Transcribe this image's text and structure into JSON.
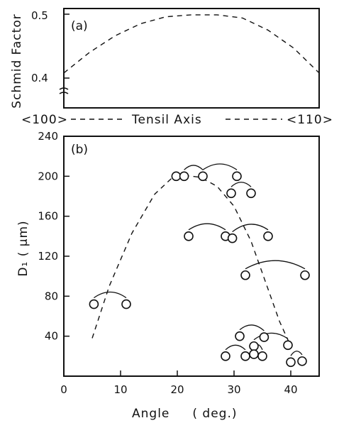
{
  "chart_data": [
    {
      "type": "line",
      "panel_label": "(a)",
      "ylabel": "Schmid Factor",
      "ylim": [
        0.38,
        0.5
      ],
      "y_ticks": [
        "0.5",
        "0.4"
      ],
      "tick_values": [
        0.5,
        0.4
      ],
      "x_start_label": "<100>",
      "x_middle_label": "Tensil Axis",
      "x_end_label": "<110>",
      "curve": {
        "x": [
          0,
          0.1,
          0.2,
          0.3,
          0.4,
          0.5,
          0.6,
          0.7,
          0.8,
          0.9,
          1.0
        ],
        "y": [
          0.408,
          0.44,
          0.466,
          0.485,
          0.496,
          0.499,
          0.499,
          0.494,
          0.475,
          0.447,
          0.408
        ]
      }
    },
    {
      "type": "scatter",
      "panel_label": "(b)",
      "ylabel": "D₁  ( μm)",
      "xlabel": "Angle     ( deg.)",
      "xlim": [
        0,
        45
      ],
      "ylim": [
        0,
        240
      ],
      "x_ticks": [
        0,
        10,
        20,
        30,
        40
      ],
      "y_ticks": [
        40,
        80,
        120,
        160,
        200,
        240
      ],
      "x_tick_labels": [
        "0",
        "10",
        "20",
        "30",
        "40"
      ],
      "y_tick_labels": [
        "40",
        "80",
        "120",
        "160",
        "200",
        "240"
      ],
      "points": [
        {
          "x": 5.3,
          "y": 72
        },
        {
          "x": 11,
          "y": 72
        },
        {
          "x": 19.8,
          "y": 200
        },
        {
          "x": 21.2,
          "y": 200
        },
        {
          "x": 24.5,
          "y": 200
        },
        {
          "x": 30.5,
          "y": 200
        },
        {
          "x": 29.5,
          "y": 183
        },
        {
          "x": 33,
          "y": 183
        },
        {
          "x": 22,
          "y": 140
        },
        {
          "x": 28.5,
          "y": 140
        },
        {
          "x": 29.7,
          "y": 138
        },
        {
          "x": 36,
          "y": 140
        },
        {
          "x": 32,
          "y": 101
        },
        {
          "x": 42.5,
          "y": 101
        },
        {
          "x": 31,
          "y": 40
        },
        {
          "x": 35.3,
          "y": 39
        },
        {
          "x": 33.5,
          "y": 30
        },
        {
          "x": 39.5,
          "y": 31
        },
        {
          "x": 28.5,
          "y": 20
        },
        {
          "x": 32,
          "y": 20
        },
        {
          "x": 33.5,
          "y": 22
        },
        {
          "x": 35,
          "y": 20
        },
        {
          "x": 40,
          "y": 14
        },
        {
          "x": 42,
          "y": 15
        }
      ],
      "pairs": [
        [
          0,
          1
        ],
        [
          3,
          4
        ],
        [
          4,
          5
        ],
        [
          6,
          7
        ],
        [
          8,
          9
        ],
        [
          10,
          11
        ],
        [
          12,
          13
        ],
        [
          14,
          15
        ],
        [
          16,
          17
        ],
        [
          18,
          19
        ],
        [
          20,
          21
        ],
        [
          22,
          23
        ]
      ],
      "trend": {
        "x": [
          5,
          8,
          12,
          16,
          19,
          21,
          24,
          27,
          30,
          33,
          35.5,
          38,
          40
        ],
        "y": [
          38,
          90,
          143,
          182,
          198,
          201,
          199,
          190,
          170,
          135,
          95,
          55,
          30
        ]
      }
    }
  ]
}
